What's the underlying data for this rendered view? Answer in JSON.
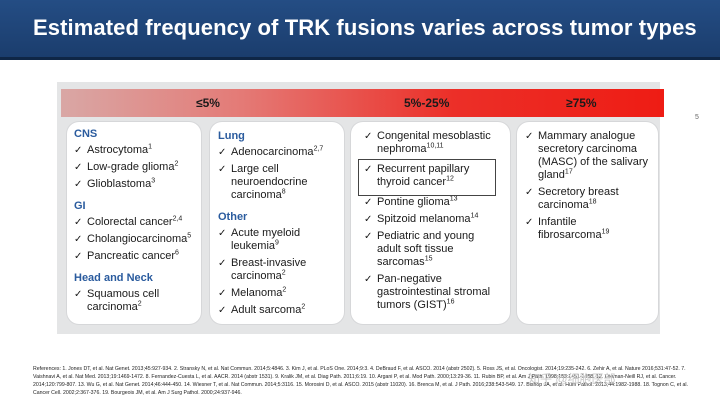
{
  "title": "Estimated frequency of TRK fusions varies across tumor types",
  "header_bands": [
    "≤5%",
    "5%-25%",
    "≥75%"
  ],
  "col1": {
    "sections": [
      {
        "heading": "CNS",
        "items": [
          {
            "text": "Astrocytoma",
            "ref": "1"
          },
          {
            "text": "Low-grade glioma",
            "ref": "2"
          },
          {
            "text": "Glioblastoma",
            "ref": "3"
          }
        ]
      },
      {
        "heading": "GI",
        "items": [
          {
            "text": "Colorectal cancer",
            "ref": "2,4"
          },
          {
            "text": "Cholangiocarcinoma",
            "ref": "5"
          },
          {
            "text": "Pancreatic cancer",
            "ref": "6"
          }
        ]
      },
      {
        "heading": "Head and Neck",
        "items": [
          {
            "text": "Squamous cell carcinoma",
            "ref": "2"
          }
        ]
      }
    ]
  },
  "col2": {
    "sections": [
      {
        "heading": "Lung",
        "items": [
          {
            "text": "Adenocarcinoma",
            "ref": "2,7"
          },
          {
            "text": "Large cell neuroendocrine carcinoma",
            "ref": "8"
          }
        ]
      },
      {
        "heading": "Other",
        "items": [
          {
            "text": "Acute myeloid leukemia",
            "ref": "9"
          },
          {
            "text": "Breast-invasive carcinoma",
            "ref": "2"
          },
          {
            "text": "Melanoma",
            "ref": "2"
          },
          {
            "text": "Adult sarcoma",
            "ref": "2"
          }
        ]
      }
    ]
  },
  "col3": {
    "items": [
      {
        "text": "Congenital mesoblastic nephroma",
        "ref": "10,11"
      },
      {
        "text": "Recurrent papillary thyroid cancer",
        "ref": "12"
      },
      {
        "text": "Pontine glioma",
        "ref": "13"
      },
      {
        "text": "Spitzoid melanoma",
        "ref": "14"
      },
      {
        "text": "Pediatric and young adult soft tissue sarcomas",
        "ref": "15"
      },
      {
        "text": "Pan-negative gastrointestinal stromal tumors (GIST)",
        "ref": "16"
      }
    ]
  },
  "col4": {
    "items": [
      {
        "text": "Mammary analogue secretory carcinoma (MASC) of the salivary gland",
        "ref": "17"
      },
      {
        "text": "Secretory breast carcinoma",
        "ref": "18"
      },
      {
        "text": "Infantile fibrosarcoma",
        "ref": "19"
      }
    ]
  },
  "references": "References: 1. Jones DT, et al. Nat Genet. 2013;45:927-934. 2. Stransky N, et al. Nat Commun. 2014;5:4846. 3. Kim J, et al. PLoS One. 2014;9:3. 4. DeBraud F, et al. ASCO. 2014 (abstr 2502). 5. Ross JS, et al. Oncologist. 2014;19:235-242. 6. Zehir A, et al. Nature 2016;531:47-52. 7. Vaishnavi A, et al. Nat Med. 2013;19:1469-1472. 8. Fernandez-Cuesta L, et al. AACR. 2014 (abstr 1531). 9. Kralik JM, et al. Diag Path. 2011;6:19. 10. Argani P, et al. Mod Path. 2000;13:29-36. 11. Rubin BP, et al. Am J Path. 1998;153:1451-1458. 12. Leeman-Neill RJ, et al. Cancer. 2014;120:799-807. 13. Wu G, et al. Nat Genet. 2014;46:444-450. 14. Wiesner T, et al. Nat Commun. 2014;5:3116. 15. Morosini D, et al. ASCO. 2015 (abstr 11020). 16. Brenca M, et al. J Path. 2016;238:543-549. 17. Bishop JA, et al. Hum Pathol. 2013;44:1982-1988. 18. Tognon C, et al. Cancer Cell. 2002;2:367-376. 19. Bourgeois JM, et al. Am J Surg Pathol. 2000;24:937-946.",
  "page_number": "5",
  "watermark": "知乎 @细胞医部"
}
